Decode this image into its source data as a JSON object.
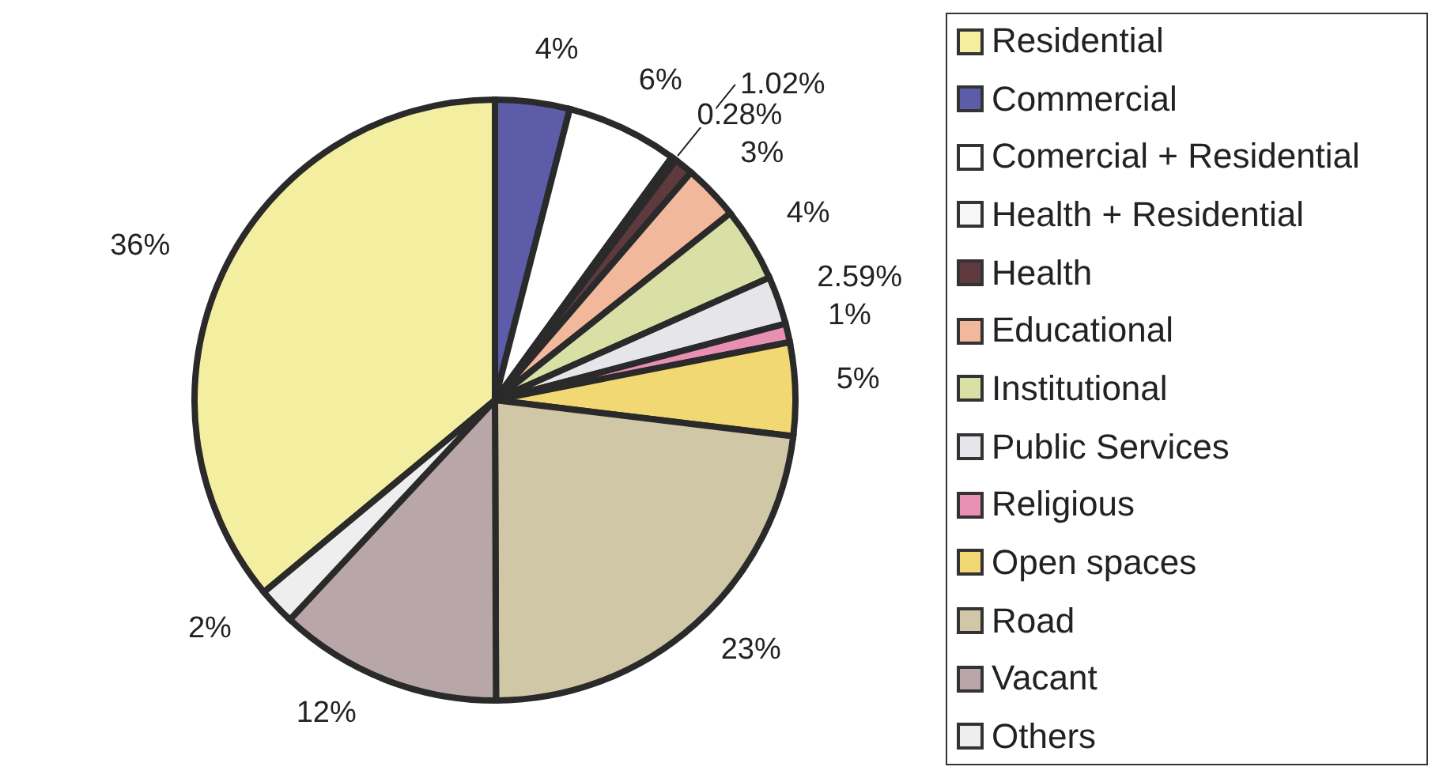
{
  "chart_data": {
    "type": "pie",
    "categories": [
      "Residential",
      "Commercial",
      "Comercial + Residential",
      "Health + Residential",
      "Health",
      "Educational",
      "Institutional",
      "Public Services",
      "Religious",
      "Open spaces",
      "Road",
      "Vacant",
      "Others"
    ],
    "values": [
      36,
      4,
      6,
      0.28,
      1.02,
      3,
      4,
      2.59,
      1,
      5,
      23,
      12,
      2
    ],
    "value_labels": [
      "36%",
      "4%",
      "6%",
      "0.28%",
      "1.02%",
      "3%",
      "4%",
      "2.59%",
      "1%",
      "5%",
      "23%",
      "12%",
      "2%"
    ],
    "colors": [
      "#f4eea0",
      "#5c5ca8",
      "#ffffff",
      "#f6f6f6",
      "#5e3a3e",
      "#f2b89c",
      "#d8e0a6",
      "#e6e6ea",
      "#e890b4",
      "#f2d872",
      "#cfc7a6",
      "#b8a6a8",
      "#eeeeee"
    ],
    "legend": "right"
  }
}
